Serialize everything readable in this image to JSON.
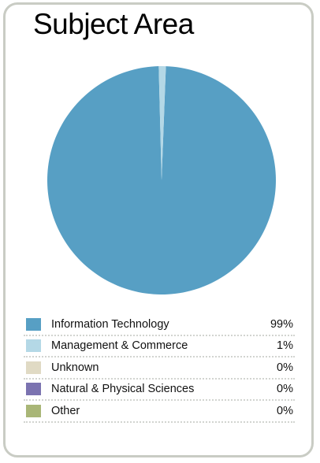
{
  "title": "Subject Area",
  "chart_data": {
    "type": "pie",
    "title": "Subject Area",
    "legend_placement": "bottom",
    "slices": [
      {
        "label": "Information Technology",
        "value": 99,
        "display": "99%",
        "color": "#579fc4"
      },
      {
        "label": "Management & Commerce",
        "value": 1,
        "display": "1%",
        "color": "#b4d8e6"
      },
      {
        "label": "Unknown",
        "value": 0,
        "display": "0%",
        "color": "#e0dac4"
      },
      {
        "label": "Natural & Physical Sciences",
        "value": 0,
        "display": "0%",
        "color": "#7b73b0"
      },
      {
        "label": "Other",
        "value": 0,
        "display": "0%",
        "color": "#a9b677"
      }
    ]
  }
}
